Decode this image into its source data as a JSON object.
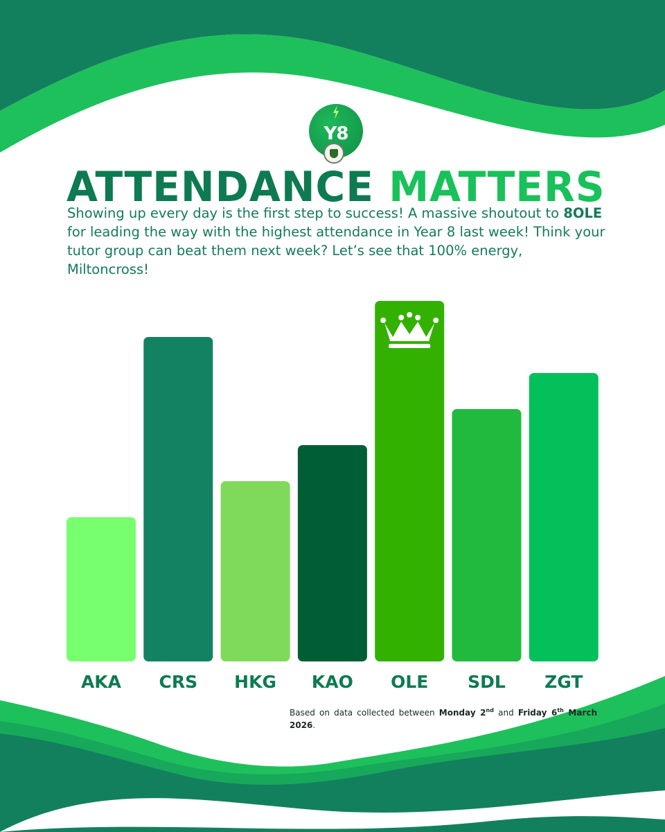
{
  "badge": {
    "label": "Y8"
  },
  "headline": {
    "part1": "ATTENDANCE",
    "part2": "MATTERS"
  },
  "intro": {
    "before": "Showing up every day is the first step to success! A massive shoutout to ",
    "highlight": "8OLE",
    "after": " for leading the way with the highest attendance in Year 8 last week! Think your tutor group can beat them next week? Let’s see that 100% energy, Miltoncross!"
  },
  "chart_data": {
    "type": "bar",
    "categories": [
      "AKA",
      "CRS",
      "HKG",
      "KAO",
      "OLE",
      "SDL",
      "ZGT"
    ],
    "values": [
      40,
      90,
      50,
      60,
      100,
      70,
      80
    ],
    "highlight_category": "OLE",
    "highlight_icon": "crown-icon",
    "colors": [
      "#77ff6e",
      "#128262",
      "#7fda5c",
      "#015e34",
      "#32b100",
      "#21ba3f",
      "#03c05b"
    ]
  },
  "footnote": {
    "text1": "Based on data collected between ",
    "start_day": "Monday 2",
    "start_sup": "nd",
    "text2": " and ",
    "end_day": "Friday 6",
    "end_sup": "th",
    "end_rest": " March 2026",
    "period": "."
  },
  "colors": {
    "dark_green": "#0e7a52",
    "bright_green": "#18c15a",
    "wave_dark": "#13805d",
    "wave_light": "#1ec05c"
  }
}
